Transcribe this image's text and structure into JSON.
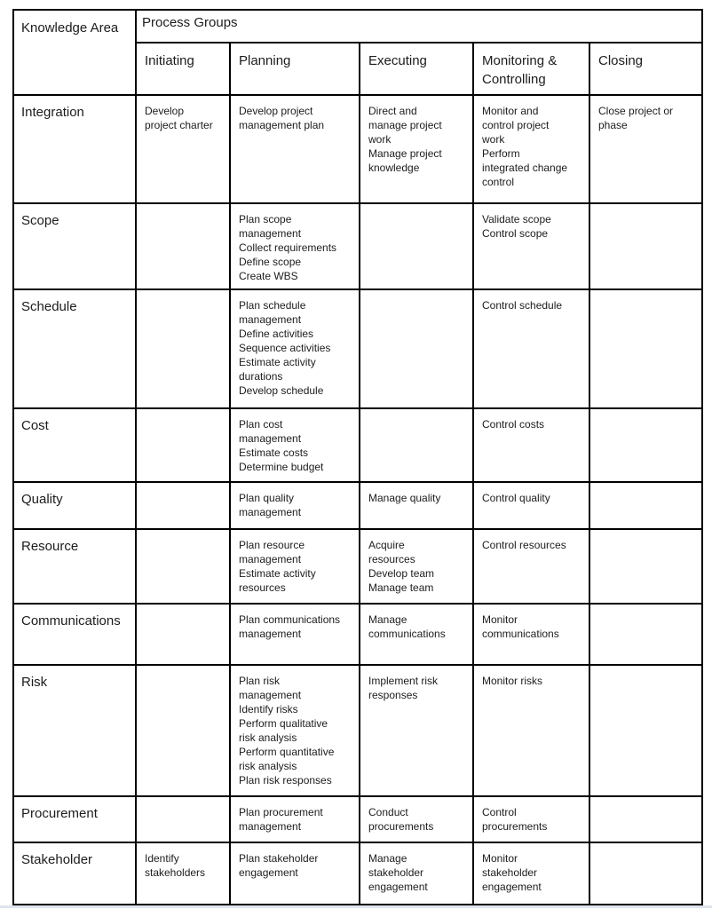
{
  "page": {
    "background": "#ffffff",
    "border_color": "#000000",
    "text_color": "#1c1c1c"
  },
  "table": {
    "corner_header": "Knowledge Area",
    "group_header": "Process Groups",
    "column_headers": [
      "Initiating",
      "Planning",
      "Executing",
      "Monitoring & Controlling",
      "Closing"
    ],
    "rows": [
      {
        "area": "Integration",
        "cells": [
          [
            "Develop project charter"
          ],
          [
            "Develop project management plan"
          ],
          [
            "Direct and manage project work",
            "Manage project knowledge"
          ],
          [
            "Monitor and control project work",
            "Perform integrated change control"
          ],
          [
            "Close project or phase"
          ]
        ]
      },
      {
        "area": "Scope",
        "cells": [
          [],
          [
            "Plan scope management",
            "Collect requirements",
            "Define scope",
            "Create WBS"
          ],
          [],
          [
            "Validate scope",
            "Control scope"
          ],
          []
        ]
      },
      {
        "area": "Schedule",
        "cells": [
          [],
          [
            "Plan schedule management",
            "Define activities",
            "Sequence activities",
            "Estimate activity durations",
            "Develop schedule"
          ],
          [],
          [
            "Control schedule"
          ],
          []
        ]
      },
      {
        "area": "Cost",
        "cells": [
          [],
          [
            "Plan cost management",
            "Estimate costs",
            "Determine budget"
          ],
          [],
          [
            "Control costs"
          ],
          []
        ]
      },
      {
        "area": "Quality",
        "cells": [
          [],
          [
            "Plan quality management"
          ],
          [
            "Manage quality"
          ],
          [
            "Control quality"
          ],
          []
        ]
      },
      {
        "area": "Resource",
        "cells": [
          [],
          [
            "Plan resource management",
            "Estimate activity resources"
          ],
          [
            "Acquire resources",
            "Develop team",
            "Manage team"
          ],
          [
            "Control resources"
          ],
          []
        ]
      },
      {
        "area": "Communications",
        "cells": [
          [],
          [
            "Plan communications management"
          ],
          [
            "Manage communications"
          ],
          [
            "Monitor communications"
          ],
          []
        ]
      },
      {
        "area": "Risk",
        "cells": [
          [],
          [
            "Plan risk management",
            "Identify risks",
            "Perform qualitative risk analysis",
            "Perform quantitative risk analysis",
            "Plan risk responses"
          ],
          [
            "Implement risk responses"
          ],
          [
            "Monitor risks"
          ],
          []
        ]
      },
      {
        "area": "Procurement",
        "cells": [
          [],
          [
            "Plan procurement management"
          ],
          [
            "Conduct procurements"
          ],
          [
            "Control procurements"
          ],
          []
        ]
      },
      {
        "area": "Stakeholder",
        "cells": [
          [
            "Identify stakeholders"
          ],
          [
            "Plan stakeholder engagement"
          ],
          [
            "Manage stakeholder engagement"
          ],
          [
            "Monitor stakeholder engagement"
          ],
          []
        ]
      }
    ]
  }
}
